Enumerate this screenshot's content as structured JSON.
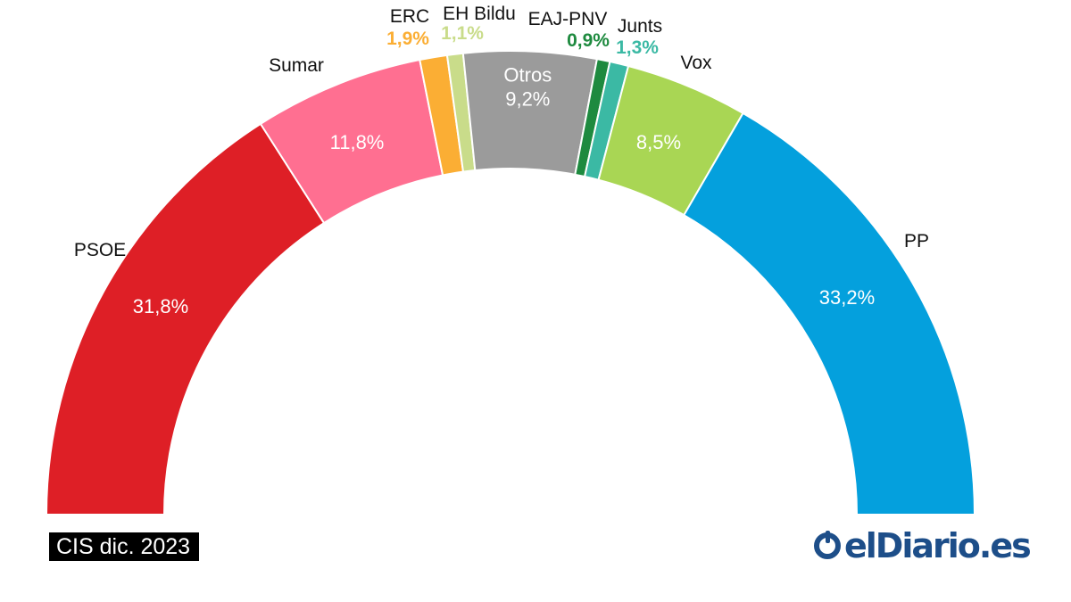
{
  "chart_data": {
    "type": "pie",
    "shape": "semicircle",
    "order": "PSOE to PP, left to right",
    "slices": [
      {
        "name": "PSOE",
        "label": "31,8%",
        "value": 31.8,
        "color": "#de1f26",
        "label_position": "inside-white"
      },
      {
        "name": "Sumar",
        "label": "11,8%",
        "value": 11.8,
        "color": "#ff6f91",
        "label_position": "inside-white"
      },
      {
        "name": "ERC",
        "label": "1,9%",
        "value": 1.9,
        "color": "#fbae34",
        "label_position": "outside-colored"
      },
      {
        "name": "EH Bildu",
        "label": "1,1%",
        "value": 1.1,
        "color": "#c9dc8a",
        "label_position": "outside-colored"
      },
      {
        "name": "Otros",
        "label": "9,2%",
        "value": 9.2,
        "color": "#9b9b9b",
        "label_position": "inside-white"
      },
      {
        "name": "EAJ-PNV",
        "label": "0,9%",
        "value": 0.9,
        "color": "#1e8a3f",
        "label_position": "outside-colored"
      },
      {
        "name": "Junts",
        "label": "1,3%",
        "value": 1.3,
        "color": "#3bb9a4",
        "label_position": "outside-colored"
      },
      {
        "name": "Vox",
        "label": "8,5%",
        "value": 8.5,
        "color": "#a9d654",
        "label_position": "inside-white"
      },
      {
        "name": "PP",
        "label": "33,2%",
        "value": 33.2,
        "color": "#04a0dd",
        "label_position": "inside-white"
      }
    ]
  },
  "source": "CIS dic. 2023",
  "logo_text": "elDiario.es"
}
